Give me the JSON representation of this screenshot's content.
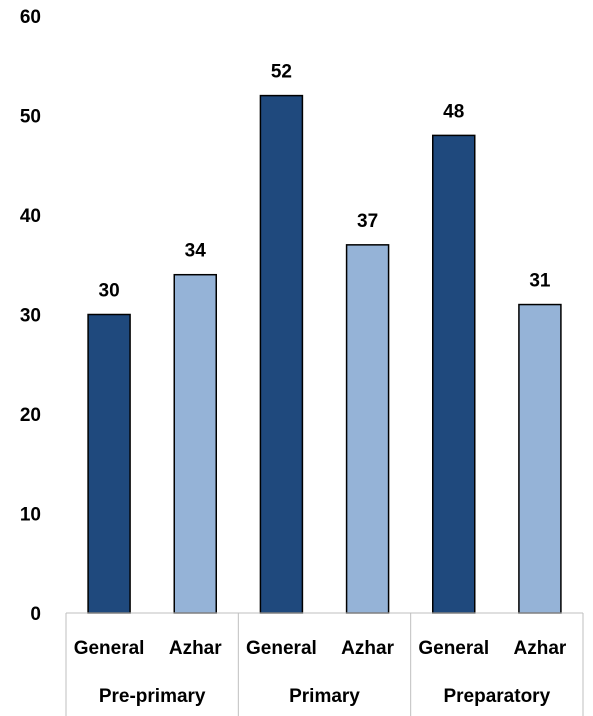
{
  "chart_data": {
    "type": "bar",
    "title": "",
    "xlabel": "",
    "ylabel": "",
    "ylim": [
      0,
      60
    ],
    "yticks": [
      0,
      10,
      20,
      30,
      40,
      50,
      60
    ],
    "grid": false,
    "legend": "none",
    "groups": [
      {
        "label": "Pre-primary",
        "bars": [
          {
            "category": "General",
            "value": 30
          },
          {
            "category": "Azhar",
            "value": 34
          }
        ]
      },
      {
        "label": "Primary",
        "bars": [
          {
            "category": "General",
            "value": 52
          },
          {
            "category": "Azhar",
            "value": 37
          }
        ]
      },
      {
        "label": "Preparatory",
        "bars": [
          {
            "category": "General",
            "value": 48
          },
          {
            "category": "Azhar",
            "value": 31
          }
        ]
      }
    ],
    "colors": {
      "General": "#1f497d",
      "Azhar": "#95b3d7"
    }
  }
}
